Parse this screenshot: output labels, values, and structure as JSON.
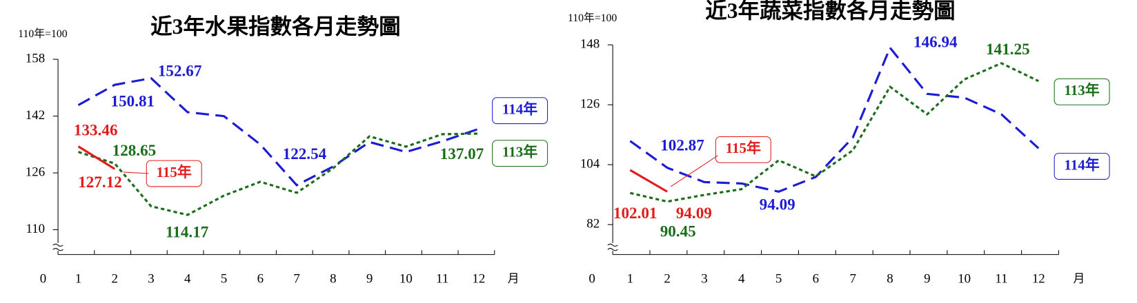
{
  "chart_data": [
    {
      "type": "line",
      "title": "近3年水果指數各月走勢圖",
      "unit_label": "110年=100",
      "origin_label": "0",
      "x_unit": "月",
      "categories": [
        "1",
        "2",
        "3",
        "4",
        "5",
        "6",
        "7",
        "8",
        "9",
        "10",
        "11",
        "12"
      ],
      "ylim": [
        103,
        158
      ],
      "yticks": [
        110,
        126,
        142,
        158
      ],
      "series": [
        {
          "name": "114年",
          "color": "#1c1cd4",
          "style": "dashed",
          "values": [
            145.1,
            150.81,
            152.67,
            143.1,
            142,
            134,
            122.54,
            127.8,
            134.7,
            131.9,
            134.9,
            138.4
          ],
          "value_labels": [
            null,
            "150.81",
            "152.67",
            null,
            null,
            null,
            "122.54",
            null,
            null,
            null,
            null,
            null
          ]
        },
        {
          "name": "113年",
          "color": "#1a6e1a",
          "style": "dotted",
          "values": [
            131.9,
            128.65,
            116.6,
            114.17,
            119.6,
            123.5,
            120.4,
            127.3,
            136.3,
            133.4,
            136.9,
            137.07
          ],
          "value_labels": [
            null,
            "128.65",
            null,
            "114.17",
            null,
            null,
            null,
            null,
            null,
            null,
            null,
            "137.07"
          ]
        },
        {
          "name": "115年",
          "color": "#e21c1c",
          "style": "solid",
          "values": [
            133.46,
            127.12,
            null,
            null,
            null,
            null,
            null,
            null,
            null,
            null,
            null,
            null
          ],
          "value_labels": [
            "133.46",
            "127.12",
            null,
            null,
            null,
            null,
            null,
            null,
            null,
            null,
            null,
            null
          ]
        }
      ]
    },
    {
      "type": "line",
      "title": "近3年蔬菜指數各月走勢圖",
      "unit_label": "110年=100",
      "origin_label": "0",
      "x_unit": "月",
      "categories": [
        "1",
        "2",
        "3",
        "4",
        "5",
        "6",
        "7",
        "8",
        "9",
        "10",
        "11",
        "12"
      ],
      "ylim": [
        71,
        148
      ],
      "yticks": [
        82,
        104,
        126,
        148
      ],
      "series": [
        {
          "name": "114年",
          "color": "#1c1cd4",
          "style": "dashed",
          "values": [
            112.7,
            102.87,
            97.6,
            97.1,
            94.09,
            99.5,
            114,
            146.94,
            130,
            128.6,
            122.5,
            110
          ],
          "value_labels": [
            null,
            "102.87",
            null,
            null,
            "94.09",
            null,
            null,
            "146.94",
            null,
            null,
            null,
            null
          ]
        },
        {
          "name": "113年",
          "color": "#1a6e1a",
          "style": "dotted",
          "values": [
            93.6,
            90.45,
            92.9,
            95,
            105.6,
            99.7,
            109.3,
            132.6,
            122.5,
            135.3,
            141.25,
            134.7
          ],
          "value_labels": [
            null,
            "90.45",
            null,
            null,
            null,
            null,
            null,
            null,
            null,
            null,
            "141.25",
            null
          ]
        },
        {
          "name": "115年",
          "color": "#e21c1c",
          "style": "solid",
          "values": [
            102.01,
            94.09,
            null,
            null,
            null,
            null,
            null,
            null,
            null,
            null,
            null,
            null
          ],
          "value_labels": [
            "102.01",
            "94.09",
            null,
            null,
            null,
            null,
            null,
            null,
            null,
            null,
            null,
            null
          ]
        }
      ]
    }
  ]
}
